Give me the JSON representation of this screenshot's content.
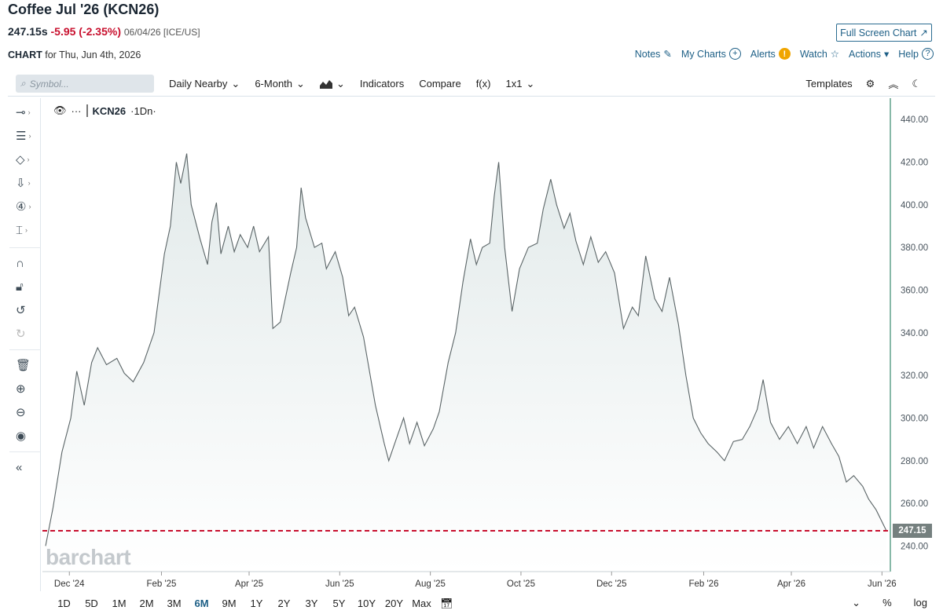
{
  "header": {
    "title": "Coffee Jul '26 (KCN26)",
    "price": "247.15s",
    "change": "-5.95 (-2.35%)",
    "meta": "06/04/26 [ICE/US]",
    "fullscreen_label": "Full Screen Chart",
    "chart_label": "CHART",
    "chart_for": "for Thu, Jun 4th, 2026"
  },
  "top_actions": {
    "notes": "Notes",
    "my_charts": "My Charts",
    "alerts": "Alerts",
    "watch": "Watch",
    "actions": "Actions",
    "help": "Help"
  },
  "toolbar": {
    "search_placeholder": "Symbol...",
    "aggregation": "Daily Nearby",
    "period": "6-Month",
    "indicators": "Indicators",
    "compare": "Compare",
    "fx": "f(x)",
    "layout": "1x1",
    "templates": "Templates"
  },
  "legend": {
    "symbol": "KCN26",
    "interval": "·1Dn·"
  },
  "watermark": "barchart",
  "bottom": {
    "periods": [
      "1D",
      "5D",
      "1M",
      "2M",
      "3M",
      "6M",
      "9M",
      "1Y",
      "2Y",
      "3Y",
      "5Y",
      "10Y",
      "20Y",
      "Max"
    ],
    "active_period": "6M",
    "percent": "%",
    "log": "log"
  },
  "colors": {
    "line": "#5a6466",
    "area_fill": "#e9efef",
    "last_price_line": "#c8102e",
    "accent": "#1d5f86"
  },
  "chart_data": {
    "type": "area",
    "symbol": "KCN26",
    "x_start": "2024-11-15",
    "x_end": "2026-06-04",
    "x_tick_labels": [
      "Dec '24",
      "Feb '25",
      "Apr '25",
      "Jun '25",
      "Aug '25",
      "Oct '25",
      "Dec '25",
      "Feb '26",
      "Apr '26",
      "Jun '26"
    ],
    "x_tick_dates": [
      "2024-12-01",
      "2025-02-01",
      "2025-04-01",
      "2025-06-01",
      "2025-08-01",
      "2025-10-01",
      "2025-12-01",
      "2026-02-01",
      "2026-04-01",
      "2026-06-01"
    ],
    "y_range": [
      228,
      450
    ],
    "y_ticks": [
      240,
      260,
      280,
      300,
      320,
      340,
      360,
      380,
      400,
      420,
      440
    ],
    "y_tick_labels": [
      "240.00",
      "260.00",
      "280.00",
      "300.00",
      "320.00",
      "340.00",
      "360.00",
      "380.00",
      "400.00",
      "420.00",
      "440.00"
    ],
    "last_price": 247.15,
    "last_price_label": "247.15",
    "grid": false,
    "points": [
      [
        "2024-11-15",
        240
      ],
      [
        "2024-11-20",
        258
      ],
      [
        "2024-11-26",
        284
      ],
      [
        "2024-12-02",
        300
      ],
      [
        "2024-12-06",
        322
      ],
      [
        "2024-12-11",
        306
      ],
      [
        "2024-12-16",
        326
      ],
      [
        "2024-12-20",
        333
      ],
      [
        "2024-12-26",
        325
      ],
      [
        "2025-01-02",
        328
      ],
      [
        "2025-01-07",
        321
      ],
      [
        "2025-01-13",
        317
      ],
      [
        "2025-01-20",
        326
      ],
      [
        "2025-01-27",
        340
      ],
      [
        "2025-02-03",
        377
      ],
      [
        "2025-02-07",
        390
      ],
      [
        "2025-02-11",
        420
      ],
      [
        "2025-02-14",
        410
      ],
      [
        "2025-02-18",
        424
      ],
      [
        "2025-02-21",
        400
      ],
      [
        "2025-02-27",
        384
      ],
      [
        "2025-03-04",
        372
      ],
      [
        "2025-03-07",
        392
      ],
      [
        "2025-03-10",
        401
      ],
      [
        "2025-03-13",
        377
      ],
      [
        "2025-03-18",
        390
      ],
      [
        "2025-03-22",
        378
      ],
      [
        "2025-03-26",
        386
      ],
      [
        "2025-03-31",
        380
      ],
      [
        "2025-04-04",
        390
      ],
      [
        "2025-04-08",
        378
      ],
      [
        "2025-04-14",
        385
      ],
      [
        "2025-04-17",
        342
      ],
      [
        "2025-04-22",
        345
      ],
      [
        "2025-04-29",
        368
      ],
      [
        "2025-05-03",
        380
      ],
      [
        "2025-05-06",
        408
      ],
      [
        "2025-05-09",
        394
      ],
      [
        "2025-05-15",
        380
      ],
      [
        "2025-05-20",
        382
      ],
      [
        "2025-05-23",
        370
      ],
      [
        "2025-05-29",
        378
      ],
      [
        "2025-06-03",
        366
      ],
      [
        "2025-06-07",
        348
      ],
      [
        "2025-06-11",
        352
      ],
      [
        "2025-06-17",
        338
      ],
      [
        "2025-06-25",
        306
      ],
      [
        "2025-07-01",
        288
      ],
      [
        "2025-07-04",
        280
      ],
      [
        "2025-07-09",
        290
      ],
      [
        "2025-07-14",
        300
      ],
      [
        "2025-07-18",
        288
      ],
      [
        "2025-07-23",
        298
      ],
      [
        "2025-07-28",
        287
      ],
      [
        "2025-08-03",
        295
      ],
      [
        "2025-08-07",
        303
      ],
      [
        "2025-08-13",
        326
      ],
      [
        "2025-08-18",
        340
      ],
      [
        "2025-08-23",
        364
      ],
      [
        "2025-08-28",
        384
      ],
      [
        "2025-09-01",
        372
      ],
      [
        "2025-09-05",
        380
      ],
      [
        "2025-09-10",
        382
      ],
      [
        "2025-09-13",
        404
      ],
      [
        "2025-09-16",
        420
      ],
      [
        "2025-09-20",
        380
      ],
      [
        "2025-09-25",
        350
      ],
      [
        "2025-09-30",
        370
      ],
      [
        "2025-10-06",
        380
      ],
      [
        "2025-10-12",
        382
      ],
      [
        "2025-10-16",
        398
      ],
      [
        "2025-10-21",
        412
      ],
      [
        "2025-10-25",
        400
      ],
      [
        "2025-10-30",
        389
      ],
      [
        "2025-11-03",
        396
      ],
      [
        "2025-11-07",
        383
      ],
      [
        "2025-11-12",
        372
      ],
      [
        "2025-11-17",
        385
      ],
      [
        "2025-11-22",
        373
      ],
      [
        "2025-11-27",
        378
      ],
      [
        "2025-12-03",
        368
      ],
      [
        "2025-12-09",
        342
      ],
      [
        "2025-12-15",
        352
      ],
      [
        "2025-12-19",
        348
      ],
      [
        "2025-12-24",
        376
      ],
      [
        "2025-12-30",
        356
      ],
      [
        "2026-01-04",
        350
      ],
      [
        "2026-01-09",
        366
      ],
      [
        "2026-01-15",
        344
      ],
      [
        "2026-01-20",
        320
      ],
      [
        "2026-01-25",
        300
      ],
      [
        "2026-01-30",
        293
      ],
      [
        "2026-02-04",
        288
      ],
      [
        "2026-02-10",
        284
      ],
      [
        "2026-02-15",
        280
      ],
      [
        "2026-02-21",
        289
      ],
      [
        "2026-02-27",
        290
      ],
      [
        "2026-03-04",
        296
      ],
      [
        "2026-03-09",
        304
      ],
      [
        "2026-03-13",
        318
      ],
      [
        "2026-03-18",
        298
      ],
      [
        "2026-03-24",
        290
      ],
      [
        "2026-03-30",
        296
      ],
      [
        "2026-04-05",
        288
      ],
      [
        "2026-04-11",
        296
      ],
      [
        "2026-04-16",
        286
      ],
      [
        "2026-04-22",
        296
      ],
      [
        "2026-04-28",
        288
      ],
      [
        "2026-05-03",
        282
      ],
      [
        "2026-05-08",
        270
      ],
      [
        "2026-05-13",
        273
      ],
      [
        "2026-05-19",
        268
      ],
      [
        "2026-05-23",
        262
      ],
      [
        "2026-05-28",
        257
      ],
      [
        "2026-06-04",
        247.15
      ]
    ]
  }
}
